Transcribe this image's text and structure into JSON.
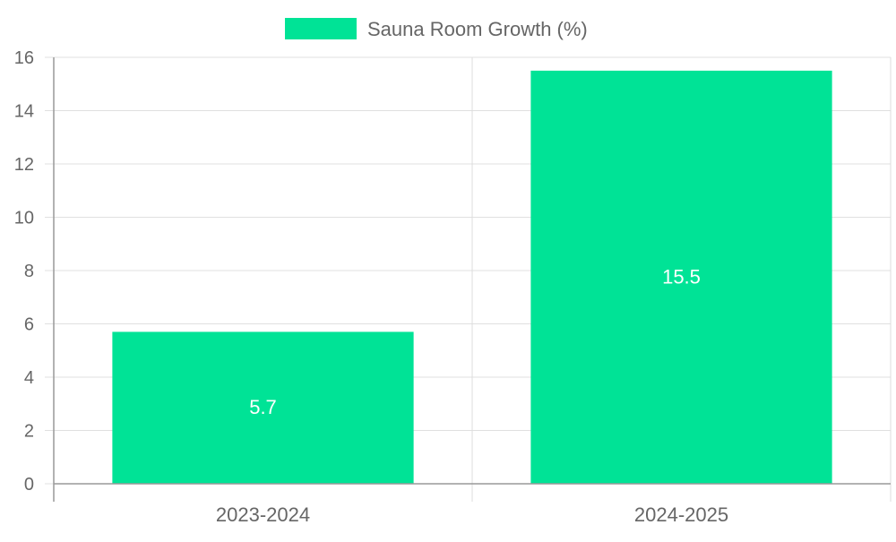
{
  "chart_data": {
    "type": "bar",
    "title": "",
    "categories": [
      "2023-2024",
      "2024-2025"
    ],
    "series": [
      {
        "name": "Sauna Room Growth (%)",
        "values": [
          5.7,
          15.5
        ],
        "color": "#00e396"
      }
    ],
    "data_labels": [
      "5.7",
      "15.5"
    ],
    "xlabel": "",
    "ylabel": "",
    "ylim": [
      0,
      16
    ],
    "yticks": [
      0,
      2,
      4,
      6,
      8,
      10,
      12,
      14,
      16
    ],
    "grid": true,
    "legend_position": "top-center"
  }
}
